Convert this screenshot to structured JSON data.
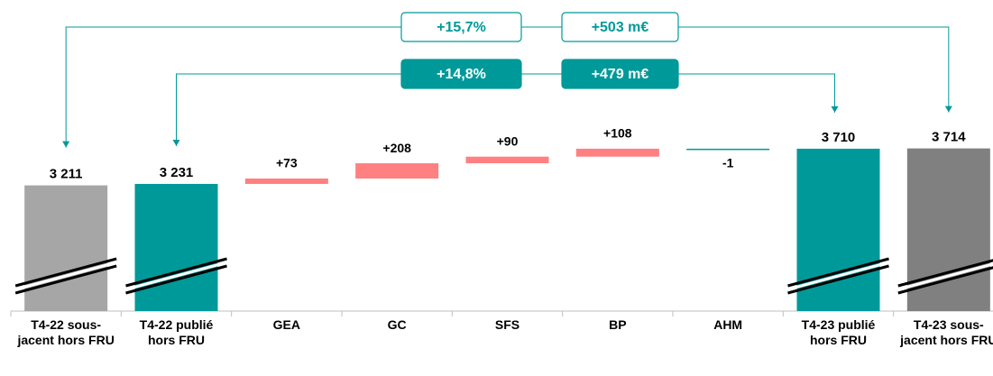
{
  "chart_data": {
    "type": "waterfall",
    "categories": [
      "T4-22 sous-jacent hors FRU",
      "T4-22 publié hors FRU",
      "GEA",
      "GC",
      "SFS",
      "BP",
      "AHM",
      "T4-23 publié hors FRU",
      "T4-23 sous-jacent hors FRU"
    ],
    "values": [
      3211,
      3231,
      73,
      208,
      90,
      108,
      -1,
      3710,
      3714
    ],
    "value_labels": [
      "3 211",
      "3 231",
      "+73",
      "+208",
      "+90",
      "+108",
      "-1",
      "3 710",
      "3 714"
    ],
    "totals": [
      true,
      true,
      false,
      false,
      false,
      false,
      false,
      true,
      true
    ],
    "colors": [
      "#a6a6a6",
      "#009999",
      "#ff8080",
      "#ff8080",
      "#ff8080",
      "#ff8080",
      "#009999",
      "#009999",
      "#808080"
    ],
    "ylim": [
      1500,
      4200
    ],
    "axis_break": true,
    "annotations": [
      {
        "from": 0,
        "to": 8,
        "style": "outline",
        "texts": [
          "+15,7%",
          "+503 m€"
        ]
      },
      {
        "from": 1,
        "to": 7,
        "style": "filled",
        "texts": [
          "+14,8%",
          "+479 m€"
        ]
      }
    ]
  }
}
